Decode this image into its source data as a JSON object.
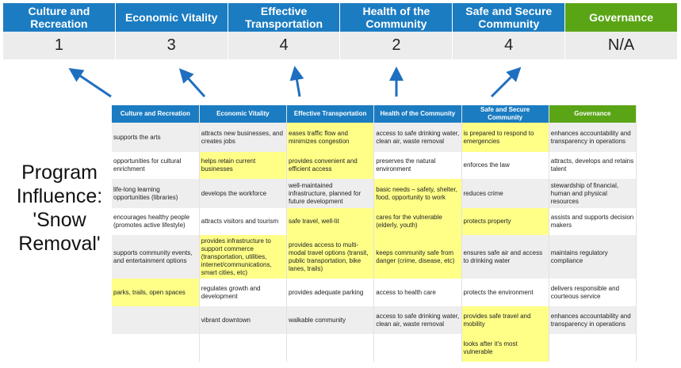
{
  "summary": {
    "categories": [
      "Culture and Recreation",
      "Economic Vitality",
      "Effective Transportation",
      "Health of the Community",
      "Safe and Secure Community",
      "Governance"
    ],
    "scores": [
      "1",
      "3",
      "4",
      "2",
      "4",
      "N/A"
    ]
  },
  "program_label": "Program Influence: 'Snow Removal'",
  "colors": {
    "header_blue": "#1b7cc2",
    "governance_green": "#5aa516",
    "highlight_yellow": "#ffff88",
    "arrow_blue": "#1f6fc0"
  },
  "table": {
    "headers": [
      "Culture and Recreation",
      "Economic Vitality",
      "Effective Transportation",
      "Health of the Community",
      "Safe and Secure Community",
      "Governance"
    ],
    "rows": [
      [
        "supports the arts",
        "attracts new businesses, and creates jobs",
        "eases traffic flow and minimizes congestion",
        "access to safe drinking water, clean air, waste removal",
        "is prepared to respond to emergencies",
        "enhances accountability and transparency in operations"
      ],
      [
        "opportunities for cultural enrichment",
        "helps retain current businesses",
        "provides convenient and efficient access",
        "preserves the natural environment",
        "enforces the law",
        "attracts, develops and retains talent"
      ],
      [
        "life-long learning opportunities (libraries)",
        "develops the workforce",
        "well-maintained infrastructure, planned for future development",
        "basic needs – safety, shelter, food, opportunity to work",
        "reduces crime",
        "stewardship of financial, human and physical resources"
      ],
      [
        "encourages healthy people (promotes active lifestyle)",
        "attracts visitors and tourism",
        "safe travel, well-lit",
        "cares for the vulnerable (elderly, youth)",
        "protects property",
        "assists and supports decision makers"
      ],
      [
        "supports community events, and entertainment options",
        "provides infrastructure to support commerce (transportation, utilities, internet/communications, smart cities, etc)",
        "provides access to multi-modal travel options (transit, public transportation, bike lanes, trails)",
        "keeps community safe from danger (crime, disease, etc)",
        "ensures safe air and access to drinking water",
        "maintains regulatory compliance"
      ],
      [
        "parks, trails, open spaces",
        "regulates growth and development",
        "provides adequate parking",
        "access to health care",
        "protects the environment",
        "delivers responsible and courteous service"
      ],
      [
        "",
        "vibrant downtown",
        "walkable community",
        "access to safe drinking water, clean air, waste removal",
        "provides safe travel and mobility",
        "enhances accountability and transparency in operations"
      ],
      [
        "",
        "",
        "",
        "",
        "looks after it's most vulnerable",
        ""
      ]
    ],
    "highlighted": [
      [
        2,
        4
      ],
      [
        1,
        2
      ],
      [
        3
      ],
      [
        2,
        3,
        4
      ],
      [
        1,
        2,
        3
      ],
      [
        0
      ],
      [
        4
      ],
      [
        4
      ]
    ]
  }
}
